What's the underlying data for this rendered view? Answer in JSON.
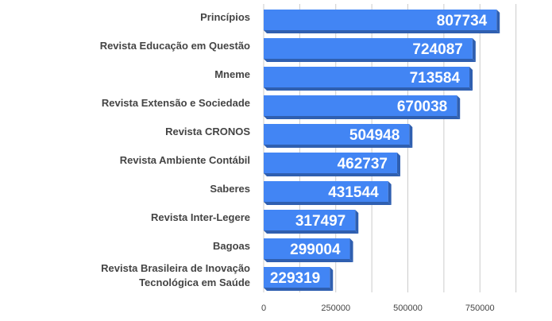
{
  "chart_data": {
    "type": "bar",
    "orientation": "horizontal",
    "style": "3d",
    "categories": [
      "Princípios",
      "Revista Educação em Questão",
      "Mneme",
      "Revista Extensão e Sociedade",
      "Revista CRONOS",
      "Revista Ambiente Contábil",
      "Saberes",
      "Revista Inter-Legere",
      "Bagoas",
      "Revista Brasileira de Inovação Tecnológica em Saúde"
    ],
    "values": [
      807734,
      724087,
      713584,
      670038,
      504948,
      462737,
      431544,
      317497,
      299004,
      229319
    ],
    "title": "",
    "xlabel": "",
    "ylabel": "",
    "xlim": [
      0,
      1000000
    ],
    "ticks": [
      0,
      250000,
      500000,
      750000
    ],
    "tick_labels": [
      "0",
      "250000",
      "500000",
      "750000"
    ],
    "data_labels": true,
    "grid": true,
    "legend": "none",
    "colors": {
      "bar": "#4285f4",
      "bar_side": "#2f5fb0",
      "bar_top": "#6ea2f7",
      "grid": "#cccccc",
      "text": "#444444"
    }
  }
}
